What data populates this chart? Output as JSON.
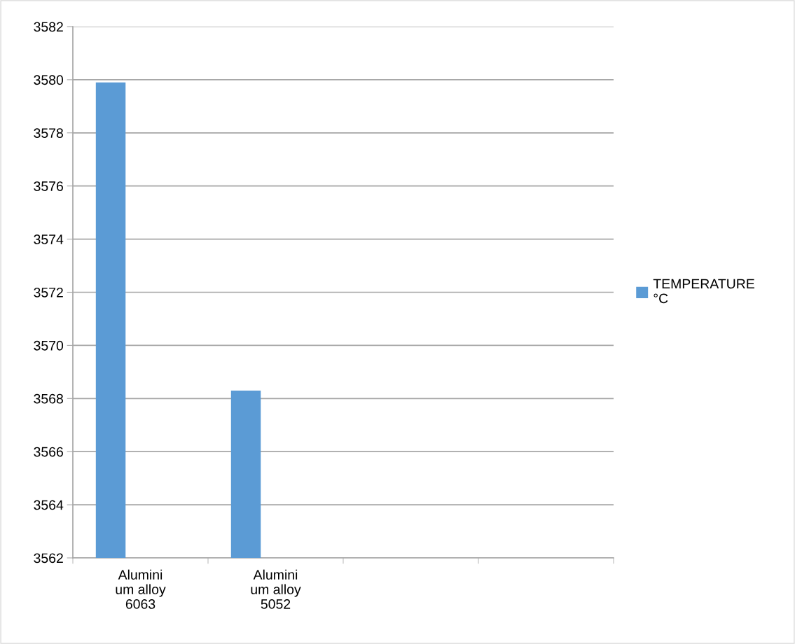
{
  "chart_data": {
    "type": "bar",
    "categories": [
      "Alumini\num alloy\n6063",
      "Alumini\num alloy\n5052",
      null,
      null
    ],
    "series": [
      {
        "name": "TEMPERATURE\n°C",
        "color": "#5b9bd5",
        "values": [
          3579.9,
          3568.3,
          null,
          null
        ]
      }
    ],
    "ylim": [
      3562,
      3582
    ],
    "yticks": [
      3562,
      3564,
      3566,
      3568,
      3570,
      3572,
      3574,
      3576,
      3578,
      3580,
      3582
    ],
    "grid": "y",
    "legend": "right"
  }
}
